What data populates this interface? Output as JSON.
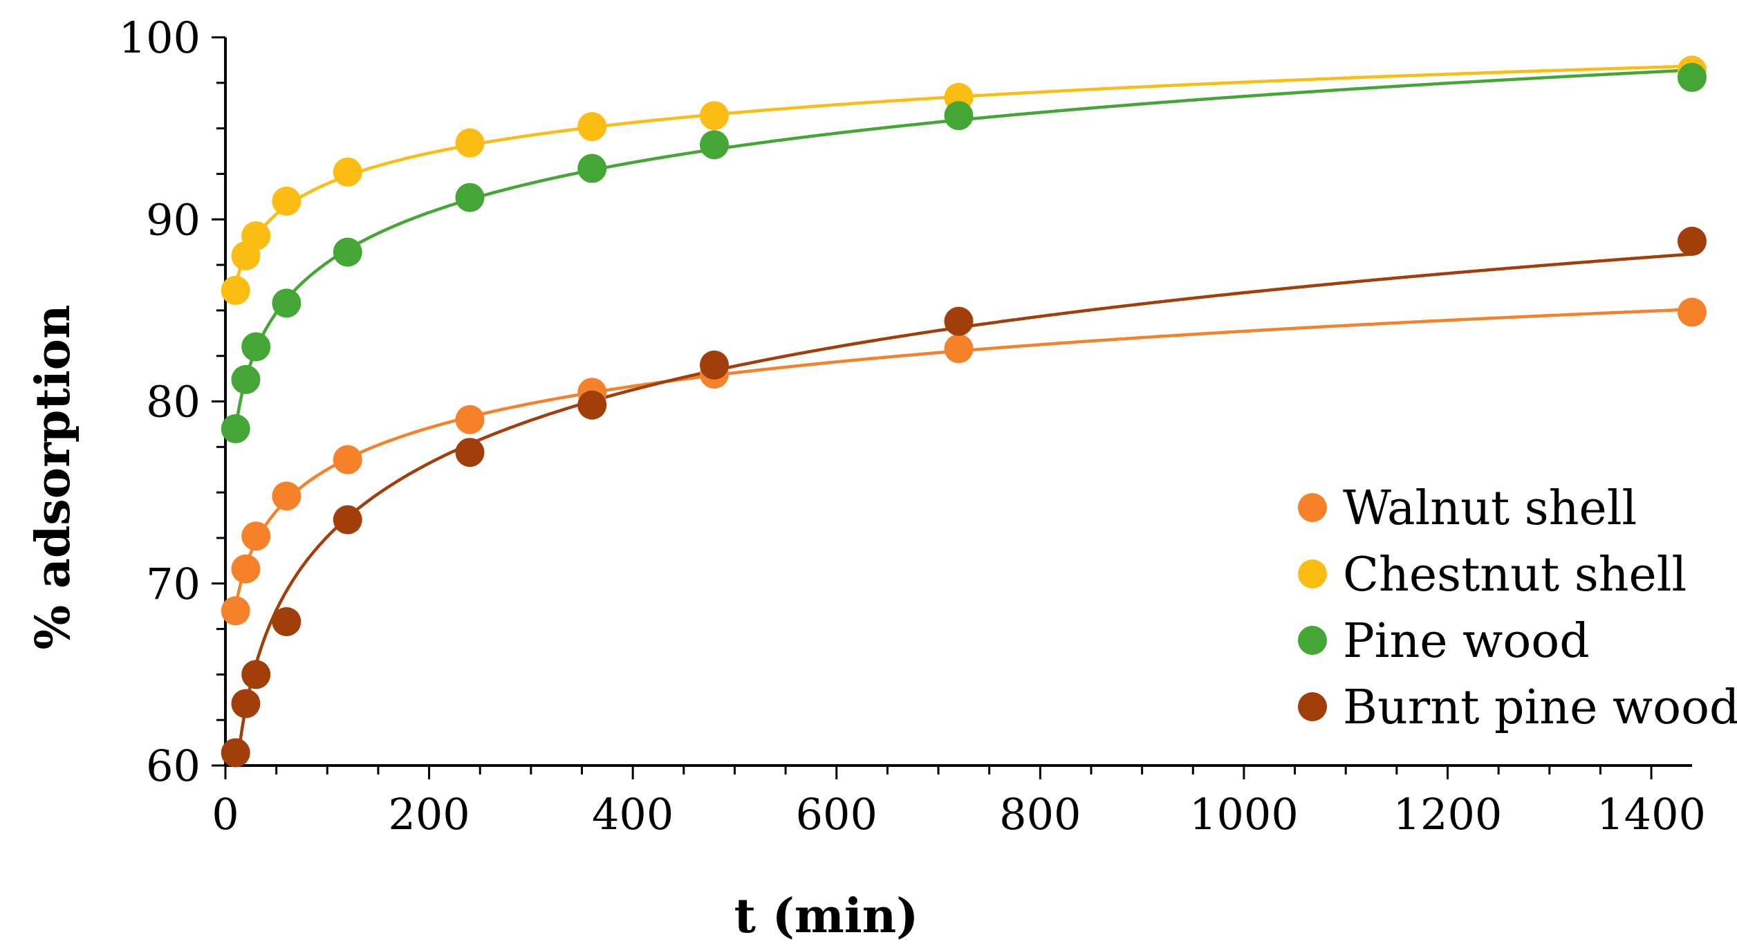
{
  "chart_data": {
    "type": "scatter",
    "title": "",
    "xlabel": "t (min)",
    "ylabel": "% adsorption",
    "xlim": [
      0,
      1440
    ],
    "ylim": [
      60,
      100
    ],
    "xticks": [
      0,
      200,
      400,
      600,
      800,
      1000,
      1200,
      1400
    ],
    "yticks": [
      60,
      70,
      80,
      90,
      100
    ],
    "x_minor_step": 50,
    "y_minor_step": 2.5,
    "grid": false,
    "legend_position": "bottom-right",
    "series": [
      {
        "name": "Walnut shell",
        "color": "#f5822a",
        "x": [
          10,
          20,
          30,
          60,
          120,
          240,
          360,
          480,
          720,
          1440
        ],
        "y": [
          68.5,
          70.8,
          72.6,
          74.8,
          76.8,
          79.0,
          80.5,
          81.5,
          82.9,
          84.9
        ]
      },
      {
        "name": "Chestnut shell",
        "color": "#fbbd13",
        "x": [
          10,
          20,
          30,
          60,
          120,
          240,
          360,
          480,
          720,
          1440
        ],
        "y": [
          86.1,
          88.0,
          89.1,
          91.0,
          92.6,
          94.2,
          95.1,
          95.7,
          96.7,
          98.2
        ]
      },
      {
        "name": "Pine wood",
        "color": "#43a635",
        "x": [
          10,
          20,
          30,
          60,
          120,
          240,
          360,
          480,
          720,
          1440
        ],
        "y": [
          78.5,
          81.2,
          83.0,
          85.4,
          88.2,
          91.2,
          92.8,
          94.1,
          95.7,
          97.8
        ]
      },
      {
        "name": "Burnt pine wood",
        "color": "#a13e0a",
        "x": [
          10,
          20,
          30,
          60,
          120,
          240,
          360,
          480,
          720,
          1440
        ],
        "y": [
          60.7,
          63.4,
          65.0,
          67.9,
          73.5,
          77.2,
          79.8,
          82.0,
          84.4,
          88.8
        ]
      }
    ]
  }
}
